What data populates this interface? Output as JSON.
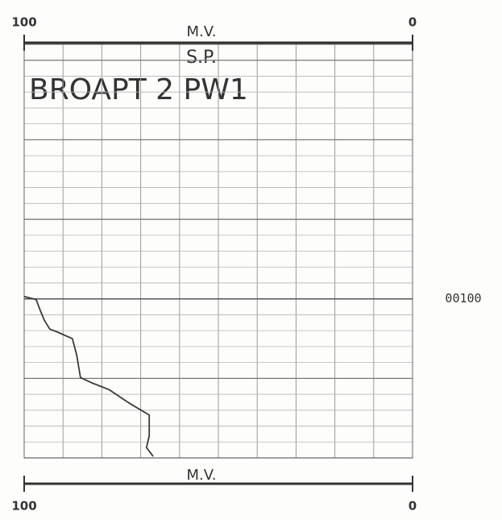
{
  "chart_data": {
    "type": "line",
    "title": "BROAPT 2 PW1",
    "subtitle": "S.P.",
    "xlabel": "M.V.",
    "xlim": [
      100,
      0
    ],
    "xticks": [
      100,
      0
    ],
    "ylim": [
      68,
      120
    ],
    "yticks": [
      {
        "value": 100,
        "label": "00100"
      }
    ],
    "grid": true,
    "color": "#3a3a3a",
    "series": [
      {
        "name": "S.P.",
        "color": "#3a3a3a",
        "x": [
          100,
          96.9,
          95.9,
          94.8,
          93.4,
          91.3,
          87.6,
          86.5,
          85.5,
          82.4,
          78.2,
          73.0,
          67.8,
          67.8,
          68.5,
          66.8
        ],
        "values": [
          99.7,
          100.1,
          101.4,
          102.7,
          103.8,
          104.2,
          105,
          107,
          109.9,
          110.6,
          111.4,
          113.1,
          114.6,
          117.2,
          118.7,
          119.8
        ]
      }
    ]
  }
}
